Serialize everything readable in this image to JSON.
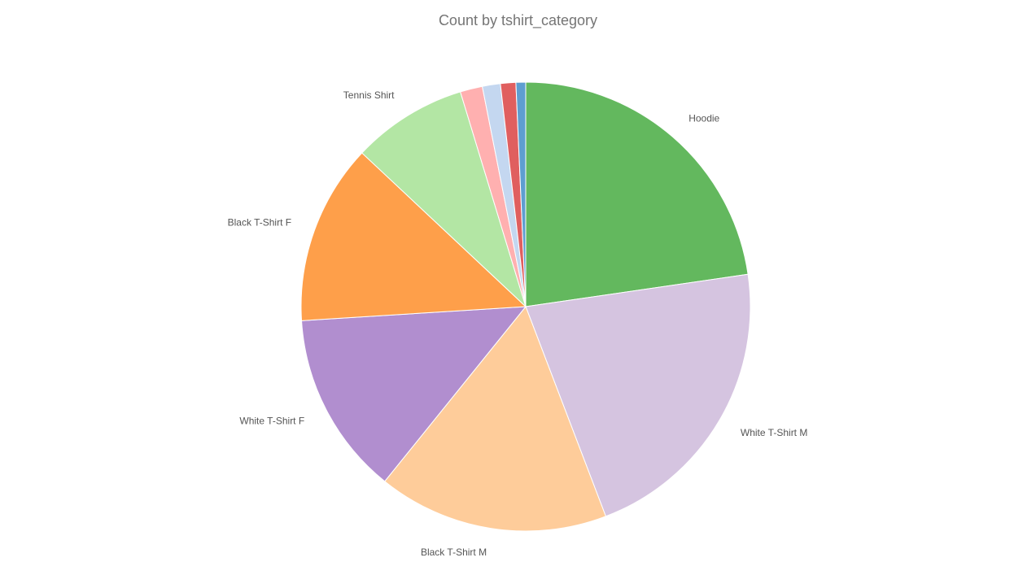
{
  "chart_data": {
    "type": "pie",
    "title": "Count by tshirt_category",
    "categories": [
      "Hoodie",
      "White T-Shirt M",
      "Black T-Shirt M",
      "White T-Shirt F",
      "Black T-Shirt F",
      "Tennis Shirt",
      "",
      "",
      "",
      ""
    ],
    "values": [
      22.7,
      21.5,
      16.6,
      13.2,
      13.0,
      8.3,
      1.6,
      1.3,
      1.1,
      0.7
    ],
    "colors": [
      "#63b85e",
      "#d5c4e0",
      "#fecc9a",
      "#b18ecf",
      "#fe9f4a",
      "#b3e6a4",
      "#ffb0b0",
      "#c4d7f0",
      "#e05f5f",
      "#5e9ed0"
    ],
    "legend": "none"
  }
}
